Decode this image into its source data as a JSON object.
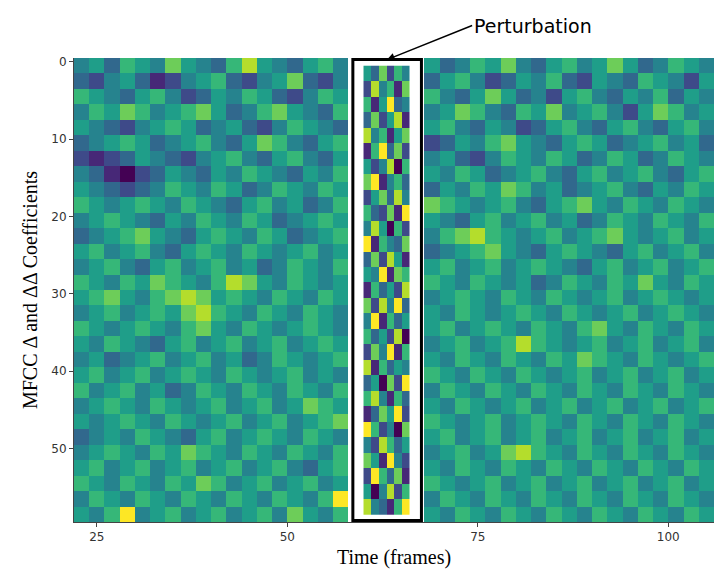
{
  "chart_data": {
    "type": "heatmap",
    "x_label": "Time (frames)",
    "y_label": "MFCC Δ and ΔΔ Coefficients",
    "color": "viridis",
    "grid": false,
    "xlim": [
      22,
      106
    ],
    "ylim": [
      59.5,
      -0.5
    ],
    "xticks": [
      25,
      50,
      75,
      100
    ],
    "yticks": [
      0,
      10,
      20,
      30,
      40,
      50
    ],
    "x": [
      23,
      25,
      27,
      29,
      31,
      33,
      35,
      37,
      39,
      41,
      43,
      45,
      47,
      49,
      51,
      53,
      55,
      57,
      59,
      61,
      63,
      65,
      67,
      69,
      71,
      73,
      75,
      77,
      79,
      81,
      83,
      85,
      87,
      89,
      91,
      93,
      95,
      97,
      99,
      101,
      103,
      105
    ],
    "y": [
      0.5,
      2.5,
      4.5,
      6.5,
      8.5,
      10.5,
      12.5,
      14.5,
      16.5,
      18.5,
      20.5,
      22.5,
      24.5,
      26.5,
      28.5,
      30.5,
      32.5,
      34.5,
      36.5,
      38.5,
      40.5,
      42.5,
      44.5,
      46.5,
      48.5,
      50.5,
      52.5,
      54.5,
      56.5,
      58.5
    ],
    "cells": [
      [
        4,
        5,
        3,
        6,
        5,
        4,
        7,
        5,
        4,
        3,
        6,
        8,
        5,
        4,
        3,
        5,
        6,
        4,
        null,
        null,
        null,
        null,
        null,
        5,
        3,
        4,
        6,
        5,
        7,
        4,
        3,
        5,
        6,
        4,
        5,
        7,
        5,
        3,
        4,
        6,
        5,
        4
      ],
      [
        3,
        2,
        4,
        5,
        3,
        1,
        2,
        4,
        5,
        6,
        3,
        2,
        4,
        5,
        7,
        3,
        2,
        4,
        null,
        null,
        null,
        null,
        null,
        3,
        5,
        6,
        4,
        2,
        3,
        5,
        4,
        6,
        3,
        2,
        5,
        4,
        3,
        6,
        5,
        4,
        2,
        5
      ],
      [
        6,
        5,
        4,
        3,
        5,
        6,
        4,
        2,
        3,
        5,
        4,
        6,
        5,
        3,
        2,
        4,
        6,
        5,
        null,
        null,
        null,
        null,
        null,
        6,
        4,
        3,
        5,
        7,
        5,
        3,
        4,
        2,
        5,
        6,
        4,
        3,
        5,
        4,
        6,
        3,
        5,
        4
      ],
      [
        4,
        6,
        5,
        7,
        6,
        4,
        5,
        6,
        7,
        5,
        3,
        4,
        6,
        7,
        5,
        4,
        3,
        6,
        null,
        null,
        null,
        null,
        null,
        4,
        5,
        7,
        6,
        4,
        3,
        6,
        5,
        7,
        4,
        5,
        6,
        4,
        2,
        5,
        7,
        6,
        4,
        5
      ],
      [
        5,
        4,
        3,
        2,
        4,
        5,
        6,
        5,
        3,
        4,
        5,
        3,
        2,
        4,
        6,
        5,
        4,
        3,
        null,
        null,
        null,
        null,
        null,
        5,
        6,
        4,
        3,
        5,
        4,
        2,
        3,
        5,
        6,
        4,
        3,
        5,
        6,
        4,
        3,
        5,
        6,
        4
      ],
      [
        3,
        4,
        5,
        6,
        5,
        3,
        4,
        5,
        6,
        4,
        3,
        5,
        7,
        6,
        4,
        3,
        5,
        6,
        null,
        null,
        null,
        null,
        null,
        2,
        3,
        5,
        4,
        6,
        7,
        5,
        4,
        3,
        5,
        6,
        5,
        3,
        4,
        5,
        6,
        4,
        5,
        3
      ],
      [
        2,
        1,
        2,
        3,
        5,
        4,
        3,
        2,
        4,
        5,
        6,
        4,
        3,
        5,
        6,
        4,
        3,
        5,
        null,
        null,
        null,
        null,
        null,
        4,
        5,
        3,
        2,
        4,
        6,
        5,
        4,
        6,
        5,
        3,
        4,
        6,
        5,
        3,
        4,
        6,
        5,
        4
      ],
      [
        4,
        3,
        1,
        0,
        2,
        3,
        5,
        4,
        3,
        5,
        4,
        6,
        5,
        4,
        3,
        5,
        4,
        6,
        null,
        null,
        null,
        null,
        null,
        5,
        4,
        6,
        5,
        3,
        4,
        5,
        6,
        4,
        3,
        5,
        6,
        4,
        5,
        6,
        4,
        3,
        5,
        6
      ],
      [
        5,
        4,
        3,
        2,
        3,
        4,
        6,
        5,
        4,
        6,
        5,
        3,
        4,
        6,
        5,
        4,
        6,
        5,
        null,
        null,
        null,
        null,
        null,
        3,
        5,
        4,
        6,
        5,
        7,
        6,
        4,
        5,
        3,
        4,
        5,
        6,
        4,
        3,
        5,
        4,
        6,
        5
      ],
      [
        6,
        5,
        4,
        5,
        6,
        5,
        4,
        6,
        5,
        4,
        3,
        5,
        6,
        4,
        5,
        3,
        4,
        6,
        null,
        null,
        null,
        null,
        null,
        7,
        6,
        5,
        4,
        5,
        6,
        4,
        3,
        5,
        6,
        7,
        5,
        4,
        6,
        5,
        4,
        6,
        5,
        4
      ],
      [
        4,
        5,
        6,
        5,
        4,
        3,
        5,
        4,
        6,
        5,
        4,
        6,
        5,
        3,
        4,
        5,
        6,
        5,
        null,
        null,
        null,
        null,
        null,
        5,
        4,
        3,
        5,
        6,
        4,
        5,
        6,
        4,
        5,
        3,
        4,
        6,
        5,
        4,
        6,
        5,
        4,
        6
      ],
      [
        3,
        4,
        5,
        6,
        7,
        5,
        4,
        3,
        5,
        6,
        5,
        4,
        6,
        5,
        3,
        4,
        5,
        6,
        null,
        null,
        null,
        null,
        null,
        4,
        6,
        7,
        8,
        6,
        5,
        4,
        5,
        6,
        4,
        5,
        6,
        7,
        5,
        4,
        5,
        6,
        4,
        5
      ],
      [
        5,
        6,
        4,
        5,
        6,
        4,
        3,
        5,
        6,
        5,
        4,
        6,
        5,
        4,
        5,
        6,
        4,
        5,
        null,
        null,
        null,
        null,
        null,
        3,
        4,
        5,
        6,
        7,
        5,
        4,
        3,
        5,
        6,
        5,
        4,
        3,
        5,
        6,
        4,
        5,
        6,
        4
      ],
      [
        4,
        5,
        6,
        4,
        3,
        5,
        6,
        4,
        5,
        6,
        4,
        5,
        3,
        4,
        6,
        5,
        4,
        6,
        null,
        null,
        null,
        null,
        null,
        5,
        6,
        4,
        5,
        6,
        4,
        5,
        6,
        5,
        4,
        3,
        5,
        6,
        4,
        5,
        6,
        4,
        5,
        6
      ],
      [
        6,
        5,
        4,
        6,
        5,
        7,
        6,
        5,
        4,
        6,
        8,
        7,
        5,
        4,
        6,
        5,
        4,
        5,
        null,
        null,
        null,
        null,
        null,
        6,
        5,
        4,
        6,
        5,
        4,
        5,
        3,
        4,
        6,
        5,
        4,
        6,
        5,
        7,
        5,
        4,
        6,
        5
      ],
      [
        5,
        6,
        7,
        5,
        4,
        6,
        7,
        8,
        7,
        5,
        6,
        5,
        4,
        6,
        5,
        4,
        6,
        5,
        null,
        null,
        null,
        null,
        null,
        4,
        5,
        6,
        5,
        4,
        6,
        5,
        4,
        6,
        5,
        4,
        5,
        6,
        4,
        5,
        6,
        5,
        4,
        5
      ],
      [
        4,
        5,
        6,
        4,
        5,
        6,
        5,
        7,
        8,
        6,
        5,
        4,
        6,
        5,
        4,
        6,
        5,
        4,
        null,
        null,
        null,
        null,
        null,
        5,
        4,
        6,
        5,
        4,
        5,
        6,
        5,
        4,
        6,
        5,
        4,
        5,
        6,
        4,
        5,
        6,
        5,
        4
      ],
      [
        6,
        5,
        4,
        5,
        6,
        5,
        4,
        6,
        7,
        5,
        4,
        6,
        5,
        4,
        5,
        6,
        5,
        4,
        null,
        null,
        null,
        null,
        null,
        5,
        6,
        4,
        5,
        6,
        5,
        4,
        6,
        5,
        4,
        6,
        7,
        5,
        4,
        6,
        5,
        4,
        6,
        5
      ],
      [
        5,
        4,
        6,
        5,
        4,
        3,
        5,
        6,
        4,
        5,
        6,
        4,
        5,
        6,
        4,
        5,
        6,
        5,
        null,
        null,
        null,
        null,
        null,
        4,
        5,
        6,
        4,
        5,
        6,
        8,
        6,
        5,
        4,
        5,
        6,
        4,
        5,
        6,
        4,
        5,
        6,
        4
      ],
      [
        4,
        5,
        3,
        4,
        5,
        6,
        4,
        5,
        6,
        4,
        5,
        3,
        4,
        6,
        5,
        4,
        5,
        6,
        null,
        null,
        null,
        null,
        null,
        5,
        4,
        6,
        5,
        4,
        6,
        5,
        4,
        6,
        5,
        7,
        6,
        5,
        4,
        6,
        5,
        4,
        5,
        6
      ],
      [
        5,
        6,
        4,
        5,
        6,
        4,
        5,
        6,
        5,
        4,
        6,
        5,
        4,
        5,
        6,
        4,
        5,
        4,
        null,
        null,
        null,
        null,
        null,
        6,
        5,
        4,
        6,
        5,
        4,
        6,
        5,
        4,
        5,
        6,
        4,
        5,
        6,
        4,
        5,
        6,
        4,
        5
      ],
      [
        6,
        4,
        5,
        6,
        4,
        5,
        3,
        4,
        6,
        5,
        4,
        6,
        5,
        4,
        6,
        5,
        4,
        6,
        null,
        null,
        null,
        null,
        null,
        4,
        6,
        5,
        4,
        6,
        5,
        4,
        6,
        5,
        4,
        6,
        5,
        4,
        6,
        5,
        4,
        6,
        5,
        4
      ],
      [
        4,
        5,
        6,
        5,
        4,
        6,
        5,
        4,
        5,
        6,
        4,
        5,
        6,
        4,
        5,
        7,
        6,
        5,
        null,
        null,
        null,
        null,
        null,
        5,
        4,
        6,
        5,
        4,
        5,
        6,
        4,
        5,
        6,
        4,
        5,
        6,
        4,
        5,
        6,
        4,
        5,
        6
      ],
      [
        5,
        4,
        5,
        6,
        5,
        4,
        6,
        5,
        4,
        5,
        6,
        4,
        5,
        6,
        4,
        5,
        6,
        7,
        null,
        null,
        null,
        null,
        null,
        6,
        5,
        4,
        5,
        6,
        4,
        5,
        6,
        5,
        4,
        6,
        5,
        4,
        6,
        5,
        4,
        6,
        5,
        4
      ],
      [
        3,
        4,
        5,
        4,
        6,
        5,
        4,
        3,
        5,
        6,
        4,
        5,
        6,
        5,
        4,
        6,
        5,
        4,
        null,
        null,
        null,
        null,
        null,
        5,
        6,
        4,
        5,
        6,
        4,
        5,
        6,
        4,
        5,
        6,
        4,
        5,
        6,
        4,
        5,
        6,
        4,
        5
      ],
      [
        4,
        5,
        6,
        5,
        4,
        6,
        5,
        7,
        6,
        5,
        4,
        6,
        5,
        4,
        6,
        5,
        4,
        6,
        null,
        null,
        null,
        null,
        null,
        4,
        5,
        6,
        4,
        5,
        7,
        8,
        6,
        5,
        4,
        6,
        5,
        4,
        6,
        5,
        4,
        6,
        5,
        4
      ],
      [
        5,
        6,
        4,
        5,
        6,
        4,
        5,
        6,
        4,
        5,
        6,
        4,
        5,
        6,
        4,
        3,
        5,
        6,
        null,
        null,
        null,
        null,
        null,
        5,
        4,
        6,
        5,
        4,
        6,
        5,
        4,
        6,
        5,
        4,
        6,
        5,
        4,
        6,
        5,
        4,
        6,
        5
      ],
      [
        6,
        5,
        4,
        6,
        5,
        4,
        6,
        5,
        7,
        6,
        4,
        5,
        6,
        4,
        5,
        6,
        4,
        5,
        null,
        null,
        null,
        null,
        null,
        6,
        5,
        4,
        5,
        6,
        4,
        5,
        6,
        4,
        5,
        6,
        4,
        5,
        6,
        4,
        5,
        6,
        4,
        5
      ],
      [
        4,
        6,
        5,
        4,
        6,
        5,
        4,
        6,
        5,
        4,
        6,
        5,
        4,
        6,
        5,
        4,
        6,
        9,
        null,
        null,
        null,
        null,
        null,
        4,
        6,
        5,
        4,
        6,
        5,
        4,
        6,
        5,
        4,
        6,
        5,
        4,
        6,
        5,
        4,
        6,
        5,
        4
      ],
      [
        5,
        4,
        6,
        9,
        4,
        5,
        6,
        4,
        5,
        6,
        4,
        5,
        6,
        4,
        7,
        5,
        4,
        6,
        null,
        null,
        null,
        null,
        null,
        5,
        4,
        6,
        5,
        4,
        6,
        5,
        4,
        6,
        5,
        4,
        6,
        5,
        4,
        6,
        5,
        4,
        6,
        5
      ]
    ],
    "perturbation": {
      "label": "Perturbation",
      "frames": [
        58.6,
        67.6
      ],
      "coefficients": [
        -0.3,
        59.3
      ],
      "x": [
        60.5,
        61.5,
        62.5,
        63.5,
        64.5,
        65.5
      ],
      "y": [
        1.5,
        3.5,
        5.5,
        7.5,
        9.5,
        11.5,
        13.5,
        15.5,
        17.5,
        19.5,
        21.5,
        23.5,
        25.5,
        27.5,
        29.5,
        31.5,
        33.5,
        35.5,
        37.5,
        39.5,
        41.5,
        43.5,
        45.5,
        47.5,
        49.5,
        51.5,
        53.5,
        55.5,
        57.5
      ],
      "cells": [
        [
          5,
          3,
          7,
          2,
          6,
          4
        ],
        [
          2,
          8,
          4,
          6,
          1,
          7
        ],
        [
          6,
          1,
          5,
          9,
          3,
          4
        ],
        [
          3,
          7,
          2,
          5,
          8,
          1
        ],
        [
          8,
          4,
          6,
          1,
          5,
          7
        ],
        [
          1,
          6,
          9,
          3,
          7,
          2
        ],
        [
          5,
          2,
          4,
          8,
          0,
          6
        ],
        [
          7,
          9,
          1,
          4,
          6,
          3
        ],
        [
          2,
          5,
          7,
          3,
          8,
          4
        ],
        [
          6,
          3,
          2,
          7,
          1,
          9
        ],
        [
          4,
          8,
          5,
          0,
          6,
          2
        ],
        [
          9,
          1,
          6,
          4,
          3,
          7
        ],
        [
          3,
          7,
          2,
          8,
          5,
          1
        ],
        [
          5,
          4,
          9,
          1,
          7,
          6
        ],
        [
          1,
          6,
          3,
          5,
          2,
          8
        ],
        [
          7,
          2,
          8,
          4,
          9,
          3
        ],
        [
          4,
          9,
          1,
          6,
          3,
          5
        ],
        [
          6,
          3,
          5,
          2,
          8,
          0
        ],
        [
          2,
          7,
          4,
          9,
          1,
          6
        ],
        [
          8,
          1,
          6,
          3,
          5,
          4
        ],
        [
          3,
          5,
          0,
          7,
          2,
          9
        ],
        [
          6,
          8,
          4,
          1,
          6,
          3
        ],
        [
          1,
          3,
          7,
          5,
          9,
          2
        ],
        [
          9,
          6,
          2,
          4,
          0,
          7
        ],
        [
          4,
          2,
          8,
          6,
          3,
          5
        ],
        [
          7,
          5,
          1,
          9,
          4,
          2
        ],
        [
          2,
          9,
          6,
          3,
          7,
          1
        ],
        [
          5,
          0,
          4,
          8,
          2,
          6
        ],
        [
          8,
          4,
          3,
          1,
          6,
          9
        ]
      ]
    }
  }
}
